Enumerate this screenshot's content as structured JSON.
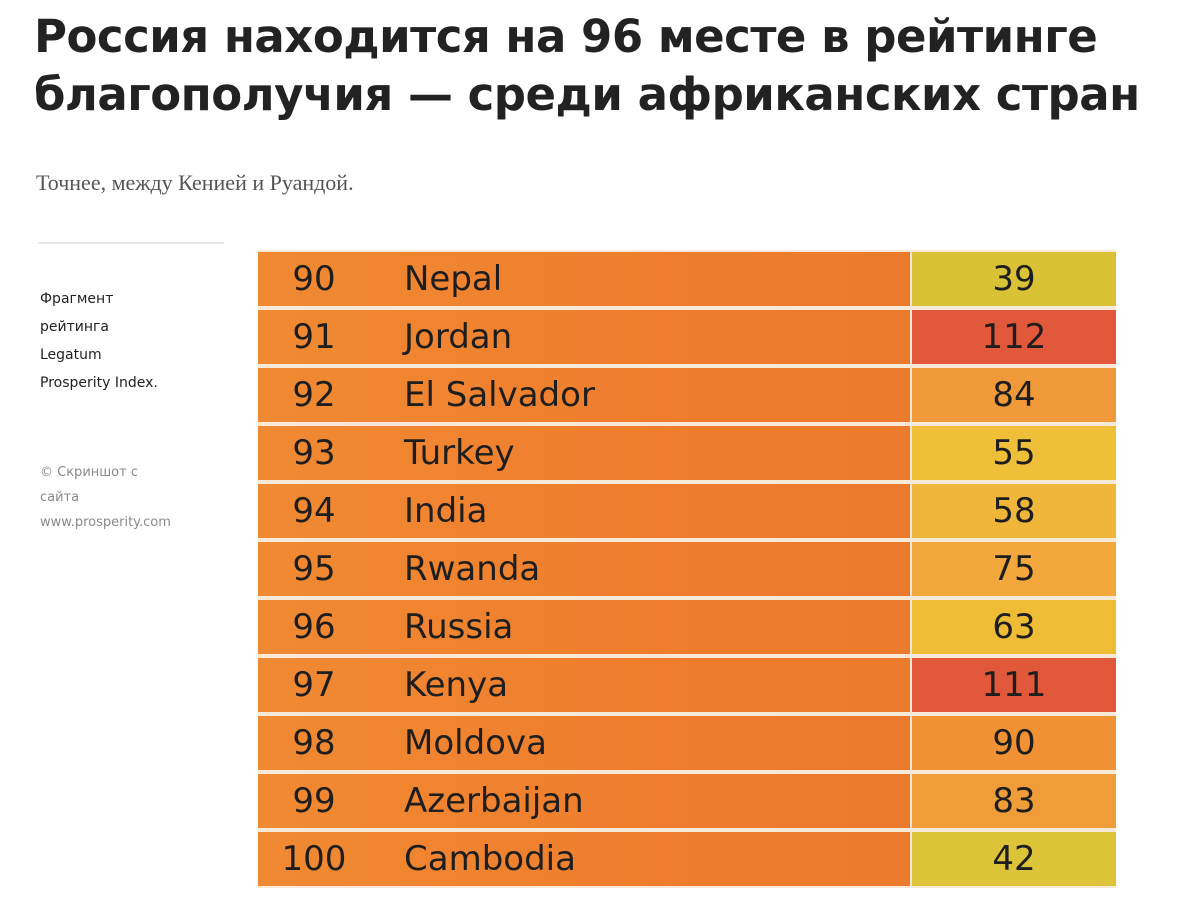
{
  "article": {
    "headline": "Россия находится на 96 месте в рейтинге благополучия — среди африканских стран",
    "subtitle": "Точнее, между Кенией и Руандой."
  },
  "sidebar": {
    "caption_lines": [
      "Фрагмент",
      "рейтинга",
      "Legatum",
      "Prosperity Index."
    ],
    "credit_lines": [
      "© Скриншот с",
      "сайта",
      "www.prosperity.com"
    ]
  },
  "table": {
    "rows": [
      {
        "rank": "90",
        "country": "Nepal",
        "score": "39",
        "score_color": "#d9c236"
      },
      {
        "rank": "91",
        "country": "Jordan",
        "score": "112",
        "score_color": "#e2583a"
      },
      {
        "rank": "92",
        "country": "El Salvador",
        "score": "84",
        "score_color": "#f09a3a"
      },
      {
        "rank": "93",
        "country": "Turkey",
        "score": "55",
        "score_color": "#efbf3a"
      },
      {
        "rank": "94",
        "country": "India",
        "score": "58",
        "score_color": "#efb63a"
      },
      {
        "rank": "95",
        "country": "Rwanda",
        "score": "75",
        "score_color": "#f2a83c"
      },
      {
        "rank": "96",
        "country": "Russia",
        "score": "63",
        "score_color": "#efbc36"
      },
      {
        "rank": "97",
        "country": "Kenya",
        "score": "111",
        "score_color": "#e2583a"
      },
      {
        "rank": "98",
        "country": "Moldova",
        "score": "90",
        "score_color": "#f09234"
      },
      {
        "rank": "99",
        "country": "Azerbaijan",
        "score": "83",
        "score_color": "#f09c38"
      },
      {
        "rank": "100",
        "country": "Cambodia",
        "score": "42",
        "score_color": "#dcc338"
      }
    ]
  }
}
